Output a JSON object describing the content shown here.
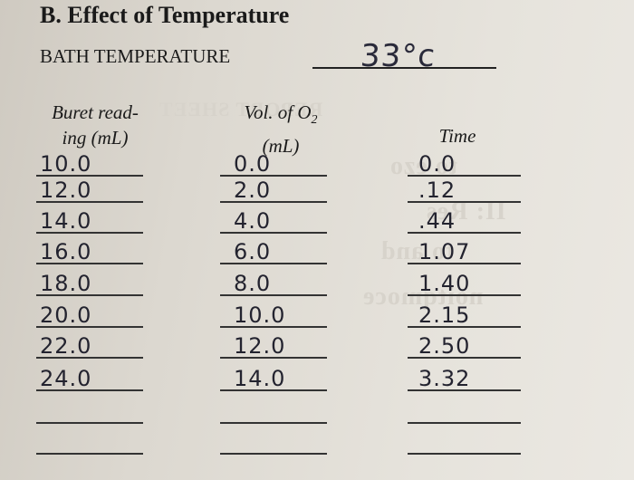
{
  "header": {
    "title": "B. Effect of Temperature",
    "bath_label": "BATH TEMPERATURE",
    "bath_value": "33°c"
  },
  "columns": [
    {
      "label": "Buret read-\ning (mL)"
    },
    {
      "label": "Vol. of O₂\n(mL)"
    },
    {
      "label": "Time"
    }
  ],
  "rows": [
    {
      "buret": "10.0",
      "vol": "0.0",
      "time": "0.0"
    },
    {
      "buret": "12.0",
      "vol": "2.0",
      "time": ".12"
    },
    {
      "buret": "14.0",
      "vol": "4.0",
      "time": ".44"
    },
    {
      "buret": "16.0",
      "vol": "6.0",
      "time": "1.07"
    },
    {
      "buret": "18.0",
      "vol": "8.0",
      "time": "1.40"
    },
    {
      "buret": "20.0",
      "vol": "10.0",
      "time": "2.15"
    },
    {
      "buret": "22.0",
      "vol": "12.0",
      "time": "2.50"
    },
    {
      "buret": "24.0",
      "vol": "14.0",
      "time": "3.32"
    },
    {
      "buret": "",
      "vol": "",
      "time": ""
    },
    {
      "buret": "",
      "vol": "",
      "time": ""
    }
  ]
}
